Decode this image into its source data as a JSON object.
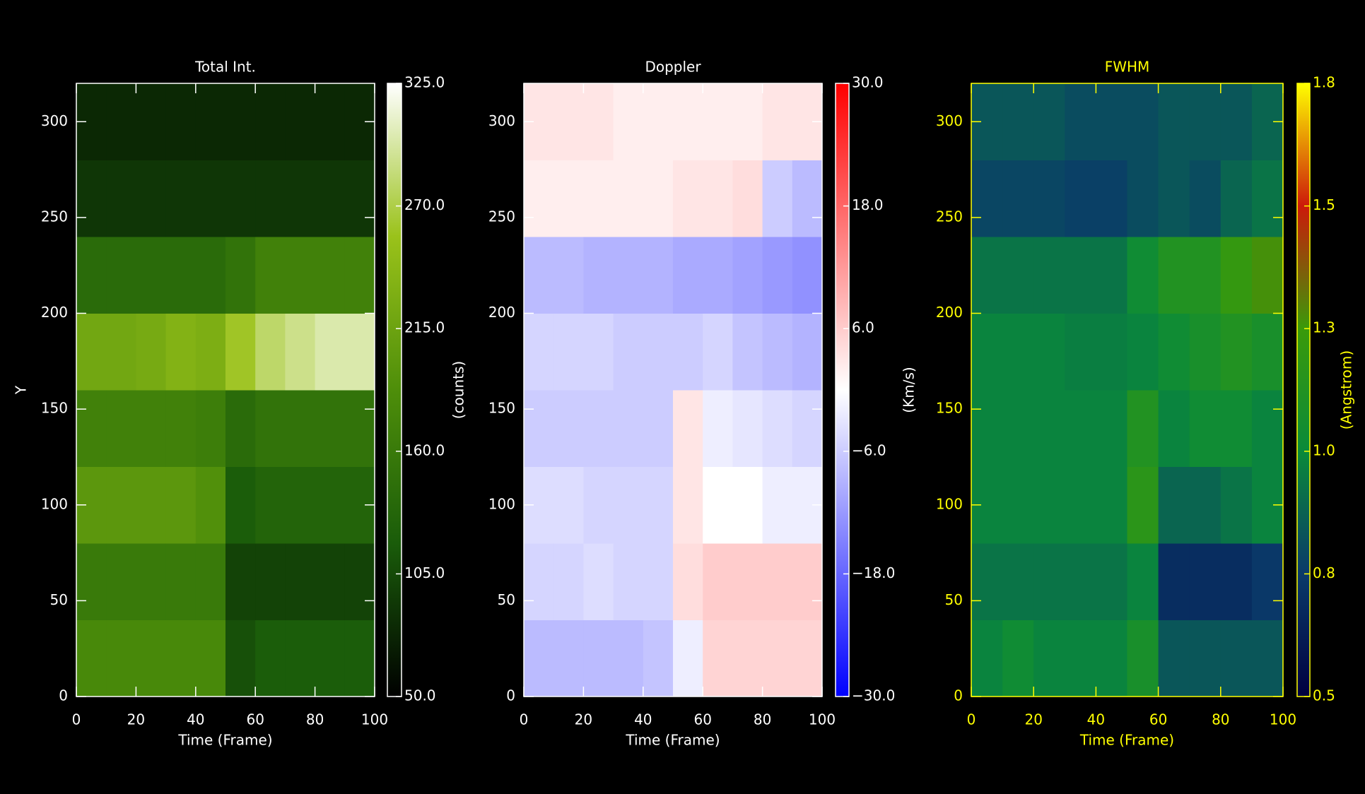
{
  "chart_data": [
    {
      "type": "heatmap",
      "title": "Total Int.",
      "xlabel": "Time (Frame)",
      "ylabel": "Y",
      "zlabel": "(counts)",
      "color": "#ffffff",
      "colormap": [
        "#000000",
        "#1a5c0a",
        "#4e8e0a",
        "#9ac21a",
        "#ffffff"
      ],
      "xlim": [
        0,
        100
      ],
      "ylim": [
        0,
        320
      ],
      "zlim": [
        50,
        325
      ],
      "xticks": [
        0,
        20,
        40,
        60,
        80,
        100
      ],
      "yticks": [
        0,
        50,
        100,
        150,
        200,
        250,
        300
      ],
      "zticks": [
        {
          "value": 50,
          "label": "50.0"
        },
        {
          "value": 105,
          "label": "105.0"
        },
        {
          "value": 160,
          "label": "160.0"
        },
        {
          "value": 215,
          "label": "215.0"
        },
        {
          "value": 270,
          "label": "270.0"
        },
        {
          "value": 325,
          "label": "325.0"
        }
      ],
      "xbins": [
        0,
        10,
        20,
        30,
        40,
        50,
        60,
        70,
        80,
        90,
        100
      ],
      "ybins": [
        0,
        40,
        80,
        120,
        160,
        200,
        240,
        280,
        320
      ],
      "z": [
        [
          180,
          180,
          180,
          180,
          180,
          110,
          120,
          120,
          120,
          120
        ],
        [
          160,
          160,
          160,
          160,
          160,
          100,
          100,
          100,
          100,
          100
        ],
        [
          200,
          200,
          200,
          200,
          190,
          120,
          130,
          130,
          130,
          130
        ],
        [
          170,
          170,
          170,
          170,
          165,
          140,
          150,
          150,
          150,
          150
        ],
        [
          220,
          220,
          225,
          235,
          230,
          260,
          280,
          290,
          300,
          300
        ],
        [
          140,
          140,
          140,
          140,
          140,
          150,
          170,
          170,
          170,
          170
        ],
        [
          90,
          90,
          90,
          90,
          90,
          90,
          90,
          90,
          90,
          90
        ],
        [
          80,
          80,
          80,
          80,
          80,
          80,
          80,
          80,
          80,
          80
        ]
      ]
    },
    {
      "type": "heatmap",
      "title": "Doppler",
      "xlabel": "Time (Frame)",
      "zlabel": "(Km/s)",
      "color": "#ffffff",
      "colormap": [
        "#0000ff",
        "#ffffff",
        "#ff0000"
      ],
      "xlim": [
        0,
        100
      ],
      "ylim": [
        0,
        320
      ],
      "zlim": [
        -30,
        30
      ],
      "xticks": [
        0,
        20,
        40,
        60,
        80,
        100
      ],
      "yticks": [
        0,
        50,
        100,
        150,
        200,
        250,
        300
      ],
      "zticks": [
        {
          "value": -30,
          "label": "−30.0"
        },
        {
          "value": -18,
          "label": "−18.0"
        },
        {
          "value": -6,
          "label": "−6.0"
        },
        {
          "value": 6,
          "label": "6.0"
        },
        {
          "value": 18,
          "label": "18.0"
        },
        {
          "value": 30,
          "label": "30.0"
        }
      ],
      "xbins": [
        0,
        10,
        20,
        30,
        40,
        50,
        60,
        70,
        80,
        90,
        100
      ],
      "ybins": [
        0,
        40,
        80,
        120,
        160,
        200,
        240,
        280,
        320
      ],
      "z": [
        [
          -8,
          -8,
          -8,
          -8,
          -7,
          -2,
          5,
          5,
          5,
          5
        ],
        [
          -5,
          -5,
          -4,
          -5,
          -5,
          4,
          6,
          6,
          6,
          6
        ],
        [
          -4,
          -4,
          -5,
          -5,
          -5,
          3,
          0,
          0,
          -2,
          -2
        ],
        [
          -6,
          -6,
          -6,
          -6,
          -6,
          3,
          -2,
          -3,
          -4,
          -5
        ],
        [
          -5,
          -5,
          -5,
          -6,
          -6,
          -6,
          -5,
          -7,
          -8,
          -9
        ],
        [
          -8,
          -8,
          -9,
          -9,
          -9,
          -10,
          -10,
          -11,
          -12,
          -13
        ],
        [
          2,
          2,
          2,
          2,
          2,
          3,
          3,
          4,
          -6,
          -8
        ],
        [
          3,
          3,
          3,
          2,
          2,
          2,
          2,
          2,
          3,
          3
        ]
      ]
    },
    {
      "type": "heatmap",
      "title": "FWHM",
      "xlabel": "Time (Frame)",
      "zlabel": "(Angstrom)",
      "color": "#ffff00",
      "colormap": [
        "#000040",
        "#0a3a6a",
        "#0a8a3a",
        "#3a9a0a",
        "#cc1a0a",
        "#ffff00"
      ],
      "xlim": [
        0,
        100
      ],
      "ylim": [
        0,
        320
      ],
      "zlim": [
        0.5,
        1.8
      ],
      "xticks": [
        0,
        20,
        40,
        60,
        80,
        100
      ],
      "yticks": [
        0,
        50,
        100,
        150,
        200,
        250,
        300
      ],
      "zticks": [
        0.5,
        {
          "value": 0.76,
          "label": "0.8"
        },
        {
          "value": 1.02,
          "label": "1.0"
        },
        {
          "value": 1.28,
          "label": "1.3"
        },
        {
          "value": 1.54,
          "label": "1.5"
        },
        1.8
      ],
      "xbins": [
        0,
        10,
        20,
        30,
        40,
        50,
        60,
        70,
        80,
        90,
        100
      ],
      "ybins": [
        0,
        40,
        80,
        120,
        160,
        200,
        240,
        280,
        320
      ],
      "z": [
        [
          1.0,
          1.05,
          1.0,
          1.0,
          1.0,
          1.1,
          0.85,
          0.85,
          0.85,
          0.85
        ],
        [
          0.95,
          0.95,
          0.95,
          0.95,
          0.95,
          1.0,
          0.7,
          0.7,
          0.7,
          0.75
        ],
        [
          1.0,
          1.0,
          1.0,
          1.0,
          1.0,
          1.2,
          0.9,
          0.9,
          0.95,
          1.0
        ],
        [
          1.0,
          1.0,
          1.0,
          1.0,
          1.0,
          1.15,
          1.0,
          1.05,
          1.05,
          1.0
        ],
        [
          1.0,
          1.0,
          1.0,
          0.98,
          0.98,
          1.0,
          1.05,
          1.1,
          1.15,
          1.1
        ],
        [
          0.95,
          0.95,
          0.95,
          0.95,
          0.95,
          1.05,
          1.15,
          1.15,
          1.25,
          1.3
        ],
        [
          0.8,
          0.8,
          0.8,
          0.78,
          0.78,
          0.82,
          0.85,
          0.82,
          0.9,
          0.95
        ],
        [
          0.85,
          0.85,
          0.85,
          0.82,
          0.82,
          0.82,
          0.85,
          0.85,
          0.85,
          0.9
        ]
      ]
    }
  ]
}
